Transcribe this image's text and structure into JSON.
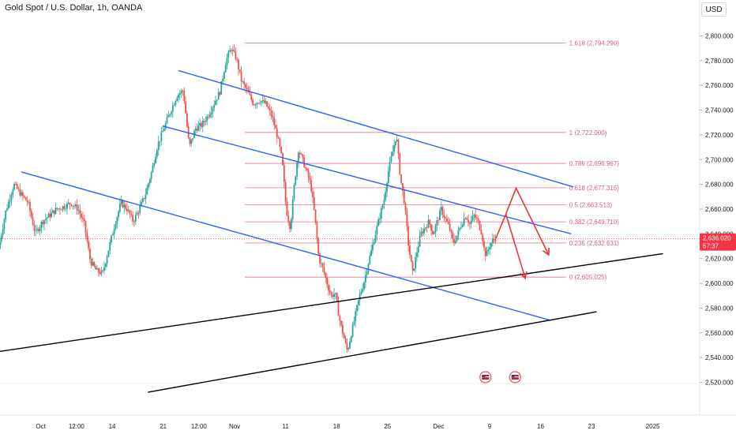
{
  "header": {
    "symbol_title": "Gold Spot / U.S. Dollar, 1h, OANDA",
    "currency_button": "USD"
  },
  "colors": {
    "up": "#26a69a",
    "down": "#ef5350",
    "fib": "#e05a7a",
    "channel": "#2962ff",
    "trend": "#000000",
    "arrow": "#e53935",
    "price_tag": "#f23645"
  },
  "chart_data": {
    "type": "candlestick",
    "instrument": "XAUUSD",
    "timeframe": "1h",
    "ylim": [
      2505,
      2815
    ],
    "y_ticks": [
      2520,
      2540,
      2560,
      2580,
      2600,
      2620,
      2640,
      2660,
      2680,
      2700,
      2720,
      2740,
      2760,
      2780,
      2800
    ],
    "y_tick_labels": [
      "2,520.000",
      "2,540.000",
      "2,560.000",
      "2,580.000",
      "2,600.000",
      "2,620.000",
      "2,640.000",
      "2,660.000",
      "2,680.000",
      "2,700.000",
      "2,720.000",
      "2,740.000",
      "2,760.000",
      "2,780.000",
      "2,800.000"
    ],
    "x_ticks": [
      {
        "label": "Oct",
        "t": 4
      },
      {
        "label": "12:00",
        "t": 7.5
      },
      {
        "label": "14",
        "t": 11
      },
      {
        "label": "21",
        "t": 16
      },
      {
        "label": "12:00",
        "t": 19.5
      },
      {
        "label": "Nov",
        "t": 23
      },
      {
        "label": "11",
        "t": 28
      },
      {
        "label": "18",
        "t": 33
      },
      {
        "label": "25",
        "t": 38
      },
      {
        "label": "Dec",
        "t": 43
      },
      {
        "label": "9",
        "t": 48
      },
      {
        "label": "16",
        "t": 53
      },
      {
        "label": "23",
        "t": 58
      },
      {
        "label": "2025",
        "t": 64
      }
    ],
    "xlim": [
      0,
      68.6
    ],
    "current_price": {
      "value": 2636.02,
      "label": "2,636.020",
      "countdown": "57:37"
    },
    "price_path": [
      [
        0,
        2628
      ],
      [
        0.7,
        2658
      ],
      [
        1.5,
        2680
      ],
      [
        2.2,
        2672
      ],
      [
        2.9,
        2665
      ],
      [
        3.6,
        2640
      ],
      [
        4.3,
        2650
      ],
      [
        5.0,
        2655
      ],
      [
        5.7,
        2660
      ],
      [
        6.4,
        2662
      ],
      [
        7.1,
        2665
      ],
      [
        7.8,
        2660
      ],
      [
        8.4,
        2648
      ],
      [
        9.0,
        2618
      ],
      [
        9.6,
        2610
      ],
      [
        10.2,
        2608
      ],
      [
        10.8,
        2628
      ],
      [
        11.4,
        2648
      ],
      [
        12.0,
        2665
      ],
      [
        12.6,
        2660
      ],
      [
        13.2,
        2650
      ],
      [
        13.8,
        2660
      ],
      [
        14.4,
        2672
      ],
      [
        15.0,
        2690
      ],
      [
        15.6,
        2712
      ],
      [
        16.2,
        2725
      ],
      [
        16.8,
        2738
      ],
      [
        17.5,
        2752
      ],
      [
        18.1,
        2756
      ],
      [
        18.7,
        2710
      ],
      [
        19.3,
        2725
      ],
      [
        19.9,
        2728
      ],
      [
        20.5,
        2735
      ],
      [
        21.1,
        2745
      ],
      [
        21.7,
        2755
      ],
      [
        22.3,
        2780
      ],
      [
        22.8,
        2790
      ],
      [
        23.3,
        2782
      ],
      [
        23.8,
        2764
      ],
      [
        24.4,
        2755
      ],
      [
        25.0,
        2745
      ],
      [
        25.6,
        2748
      ],
      [
        26.2,
        2745
      ],
      [
        26.8,
        2735
      ],
      [
        27.3,
        2720
      ],
      [
        27.8,
        2700
      ],
      [
        28.2,
        2660
      ],
      [
        28.6,
        2645
      ],
      [
        29.0,
        2680
      ],
      [
        29.4,
        2708
      ],
      [
        29.8,
        2700
      ],
      [
        30.2,
        2690
      ],
      [
        30.6,
        2680
      ],
      [
        31.0,
        2655
      ],
      [
        31.4,
        2620
      ],
      [
        31.8,
        2612
      ],
      [
        32.2,
        2600
      ],
      [
        32.6,
        2590
      ],
      [
        33.0,
        2592
      ],
      [
        33.4,
        2572
      ],
      [
        33.8,
        2558
      ],
      [
        34.2,
        2545
      ],
      [
        34.6,
        2560
      ],
      [
        35.0,
        2575
      ],
      [
        35.4,
        2590
      ],
      [
        35.8,
        2600
      ],
      [
        36.2,
        2615
      ],
      [
        36.6,
        2628
      ],
      [
        37.0,
        2642
      ],
      [
        37.4,
        2655
      ],
      [
        37.8,
        2668
      ],
      [
        38.2,
        2690
      ],
      [
        38.6,
        2705
      ],
      [
        39.0,
        2720
      ],
      [
        39.4,
        2685
      ],
      [
        39.8,
        2665
      ],
      [
        40.2,
        2630
      ],
      [
        40.6,
        2608
      ],
      [
        41.0,
        2625
      ],
      [
        41.4,
        2640
      ],
      [
        41.8,
        2645
      ],
      [
        42.2,
        2650
      ],
      [
        42.6,
        2640
      ],
      [
        43.0,
        2650
      ],
      [
        43.4,
        2660
      ],
      [
        43.8,
        2652
      ],
      [
        44.2,
        2645
      ],
      [
        44.6,
        2632
      ],
      [
        45.0,
        2640
      ],
      [
        45.4,
        2648
      ],
      [
        45.8,
        2655
      ],
      [
        46.2,
        2648
      ],
      [
        46.6,
        2655
      ],
      [
        47.0,
        2650
      ],
      [
        47.4,
        2640
      ],
      [
        47.6,
        2628
      ],
      [
        47.8,
        2622
      ],
      [
        48.2,
        2632
      ],
      [
        48.6,
        2636.02
      ]
    ],
    "fib_levels": [
      {
        "ratio": "1.618",
        "value": 2794.29,
        "label": "1.618 (2,794.290)"
      },
      {
        "ratio": "1",
        "value": 2722.0,
        "label": "1 (2,722.000)"
      },
      {
        "ratio": "0.786",
        "value": 2696.967,
        "label": "0.786 (2,696.967)"
      },
      {
        "ratio": "0.618",
        "value": 2677.315,
        "label": "0.618 (2,677.315)"
      },
      {
        "ratio": "0.5",
        "value": 2663.513,
        "label": "0.5 (2,663.513)"
      },
      {
        "ratio": "0.382",
        "value": 2649.71,
        "label": "0.382 (2,649.710)"
      },
      {
        "ratio": "0.236",
        "value": 2632.631,
        "label": "0.236 (2,632.631)"
      },
      {
        "ratio": "0",
        "value": 2605.025,
        "label": "0 (2,605.025)"
      }
    ],
    "fib_range_t": [
      24.0,
      55.5
    ],
    "channel_lines": [
      {
        "from": [
          17.5,
          2772
        ],
        "to": [
          56.2,
          2678
        ]
      },
      {
        "from": [
          16.0,
          2727
        ],
        "to": [
          56.0,
          2640
        ]
      },
      {
        "from": [
          2.1,
          2690
        ],
        "to": [
          54.0,
          2570
        ]
      }
    ],
    "trend_lines": [
      {
        "from": [
          0,
          2545
        ],
        "to": [
          65.0,
          2624
        ]
      },
      {
        "from": [
          14.5,
          2512
        ],
        "to": [
          58.5,
          2577
        ]
      }
    ],
    "projection_path": [
      [
        48.6,
        2636
      ],
      [
        49.6,
        2656
      ],
      [
        50.6,
        2677
      ],
      [
        53.8,
        2623
      ]
    ],
    "projection_path_2": [
      [
        49.6,
        2656
      ],
      [
        51.5,
        2604
      ]
    ],
    "event_icons_t": [
      47.6,
      50.5
    ]
  }
}
